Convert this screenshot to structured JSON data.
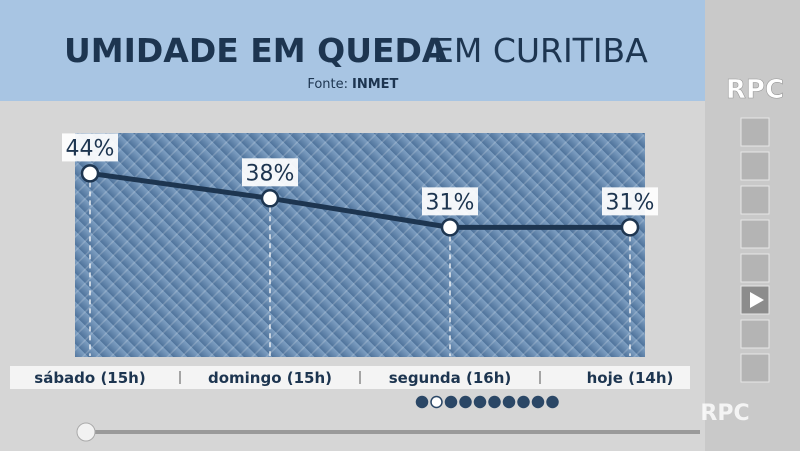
{
  "chart_data": {
    "type": "line",
    "title": "UMIDADE EM QUEDA",
    "title_suffix": "EM CURITIBA",
    "source_label": "Fonte:",
    "source": "INMET",
    "categories": [
      "sábado (15h)",
      "domingo (15h)",
      "segunda (16h)",
      "hoje (14h)"
    ],
    "values": [
      44,
      38,
      31,
      31
    ],
    "value_labels": [
      "44%",
      "38%",
      "31%",
      "31%"
    ],
    "color": "#1d3550"
  },
  "logo": "RPC"
}
